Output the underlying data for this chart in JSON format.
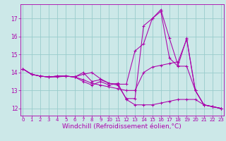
{
  "background_color": "#cce8e8",
  "line_color": "#aa00aa",
  "grid_color": "#99cccc",
  "xlabel": "Windchill (Refroidissement éolien,°C)",
  "xlabel_fontsize": 6.5,
  "ytick_labels": [
    "12",
    "13",
    "14",
    "15",
    "16",
    "17"
  ],
  "yticks": [
    12,
    13,
    14,
    15,
    16,
    17
  ],
  "xticks": [
    0,
    1,
    2,
    3,
    4,
    5,
    6,
    7,
    8,
    9,
    10,
    11,
    12,
    13,
    14,
    15,
    16,
    17,
    18,
    19,
    20,
    21,
    22,
    23
  ],
  "xlim": [
    -0.3,
    23.3
  ],
  "ylim": [
    11.6,
    17.8
  ],
  "series": [
    [
      14.2,
      13.9,
      13.8,
      13.75,
      13.75,
      13.8,
      13.75,
      13.9,
      14.0,
      13.65,
      13.4,
      13.35,
      13.35,
      15.2,
      15.6,
      17.0,
      17.5,
      15.9,
      14.4,
      15.9,
      13.0,
      12.2,
      12.1,
      12.0
    ],
    [
      14.2,
      13.9,
      13.8,
      13.75,
      13.8,
      13.8,
      13.75,
      14.0,
      13.5,
      13.6,
      13.4,
      13.3,
      12.55,
      12.55,
      16.6,
      17.0,
      17.4,
      14.8,
      14.35,
      14.35,
      13.0,
      12.2,
      12.1,
      12.0
    ],
    [
      14.2,
      13.9,
      13.8,
      13.75,
      13.8,
      13.8,
      13.75,
      13.6,
      13.4,
      13.3,
      13.2,
      13.1,
      13.0,
      13.0,
      14.0,
      14.3,
      14.4,
      14.5,
      14.6,
      15.85,
      13.0,
      12.2,
      12.1,
      12.0
    ],
    [
      14.2,
      13.9,
      13.8,
      13.75,
      13.8,
      13.8,
      13.75,
      13.5,
      13.3,
      13.5,
      13.3,
      13.4,
      12.5,
      12.2,
      12.2,
      12.2,
      12.3,
      12.4,
      12.5,
      12.5,
      12.5,
      12.2,
      12.1,
      12.0
    ]
  ]
}
